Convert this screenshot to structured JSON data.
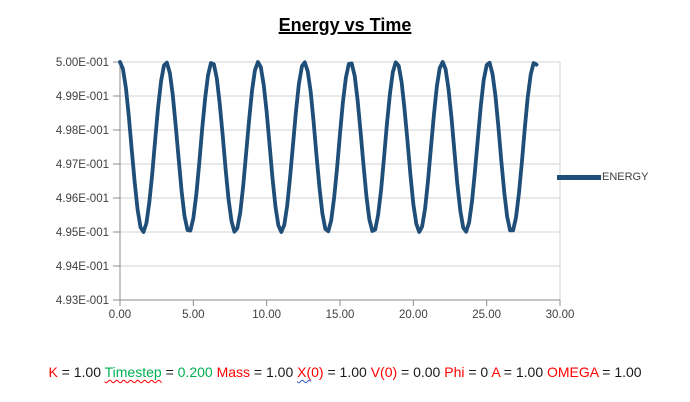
{
  "chart_data": {
    "type": "line",
    "title": "Energy vs Time",
    "xlabel": "",
    "ylabel": "",
    "xlim": [
      0,
      30
    ],
    "ylim": [
      0.493,
      0.5
    ],
    "grid": "horizontal",
    "legend_position": "right",
    "x_tick_values": [
      0,
      5,
      10,
      15,
      20,
      25,
      30
    ],
    "x_tick_labels": [
      "0.00",
      "5.00",
      "10.00",
      "15.00",
      "20.00",
      "25.00",
      "30.00"
    ],
    "y_tick_values": [
      0.5,
      0.499,
      0.498,
      0.497,
      0.496,
      0.495,
      0.494,
      0.493
    ],
    "y_tick_labels": [
      "5.00E-001",
      "4.99E-001",
      "4.98E-001",
      "4.97E-001",
      "4.96E-001",
      "4.95E-001",
      "4.94E-001",
      "4.93E-001"
    ],
    "series": [
      {
        "name": "ENERGY",
        "color": "#1F4E79",
        "x_start": 0,
        "x_step": 0.2,
        "values": [
          0.5,
          0.4998,
          0.49924,
          0.49841,
          0.49743,
          0.49646,
          0.49566,
          0.49514,
          0.495,
          0.49526,
          0.49587,
          0.49673,
          0.49772,
          0.49867,
          0.49944,
          0.4999,
          0.49998,
          0.49967,
          0.49902,
          0.49813,
          0.49714,
          0.4962,
          0.49547,
          0.49506,
          0.49504,
          0.4954,
          0.4961,
          0.49701,
          0.49801,
          0.49892,
          0.49961,
          0.49997,
          0.49993,
          0.49952,
          0.49878,
          0.49784,
          0.49685,
          0.49597,
          0.49532,
          0.49501,
          0.49511,
          0.49558,
          0.49636,
          0.49731,
          0.49829,
          0.49915,
          0.49975,
          0.5,
          0.49985,
          0.49933,
          0.49852,
          0.49756,
          0.49658,
          0.49574,
          0.49519,
          0.495,
          0.49521,
          0.49578,
          0.49662,
          0.4976,
          0.49856,
          0.49936,
          0.49987,
          0.49999,
          0.49973,
          0.49912,
          0.49824,
          0.49725,
          0.4963,
          0.49554,
          0.49509,
          0.49502,
          0.49534,
          0.496,
          0.49689,
          0.49789,
          0.49882,
          0.49954,
          0.49994,
          0.49996,
          0.49959,
          0.49888,
          0.49797,
          0.49697,
          0.49606,
          0.49538,
          0.49503,
          0.49507,
          0.4955,
          0.49624,
          0.49718,
          0.49817,
          0.49905,
          0.4997,
          0.49999,
          0.49989,
          0.49941,
          0.49862,
          0.49767,
          0.49669,
          0.49583,
          0.49524,
          0.495,
          0.49516,
          0.49569,
          0.4965,
          0.49747,
          0.49844,
          0.49927,
          0.49982,
          0.5,
          0.49979,
          0.49921,
          0.49836,
          0.49738,
          0.49642,
          0.49563,
          0.49513,
          0.49501,
          0.49528,
          0.4959,
          0.49677,
          0.49776,
          0.49871,
          0.49947,
          0.49991,
          0.49998,
          0.49965,
          0.49899,
          0.49809,
          0.49709,
          0.49616,
          0.49544,
          0.49505,
          0.49505,
          0.49543,
          0.49613,
          0.49706,
          0.49805,
          0.49896,
          0.49963,
          0.49997,
          0.49992
        ]
      }
    ]
  },
  "colors": {
    "series_line": "#1F4E79",
    "gridline": "#D3D3D3",
    "axis_line": "#8C8C8C",
    "tick_label": "#3F3F3F",
    "caption_red": "#FF0000",
    "caption_green": "#00B050",
    "caption_black": "#1A1A1A"
  },
  "caption": {
    "segments": [
      {
        "text": "K",
        "color": "#FF0000"
      },
      {
        "text": " = 1.00 ",
        "color": "#1A1A1A"
      },
      {
        "text": "Timestep",
        "color": "#00B050",
        "squiggle": "red"
      },
      {
        "text": " = ",
        "color": "#1A1A1A"
      },
      {
        "text": "0.200",
        "color": "#00B050"
      },
      {
        "text": " ",
        "color": "#1A1A1A"
      },
      {
        "text": "Mass",
        "color": "#FF0000"
      },
      {
        "text": " = 1.00 ",
        "color": "#1A1A1A"
      },
      {
        "text": "X(",
        "color": "#FF0000",
        "squiggle": "blue"
      },
      {
        "text": "0)",
        "color": "#FF0000"
      },
      {
        "text": " = 1.00 ",
        "color": "#1A1A1A"
      },
      {
        "text": "V(0)",
        "color": "#FF0000"
      },
      {
        "text": " = 0.00 ",
        "color": "#1A1A1A"
      },
      {
        "text": "Phi",
        "color": "#FF0000"
      },
      {
        "text": " = 0 ",
        "color": "#1A1A1A"
      },
      {
        "text": "A",
        "color": "#FF0000"
      },
      {
        "text": " = 1.00 ",
        "color": "#1A1A1A"
      },
      {
        "text": "OMEGA",
        "color": "#FF0000"
      },
      {
        "text": " = 1.00",
        "color": "#1A1A1A"
      }
    ]
  }
}
